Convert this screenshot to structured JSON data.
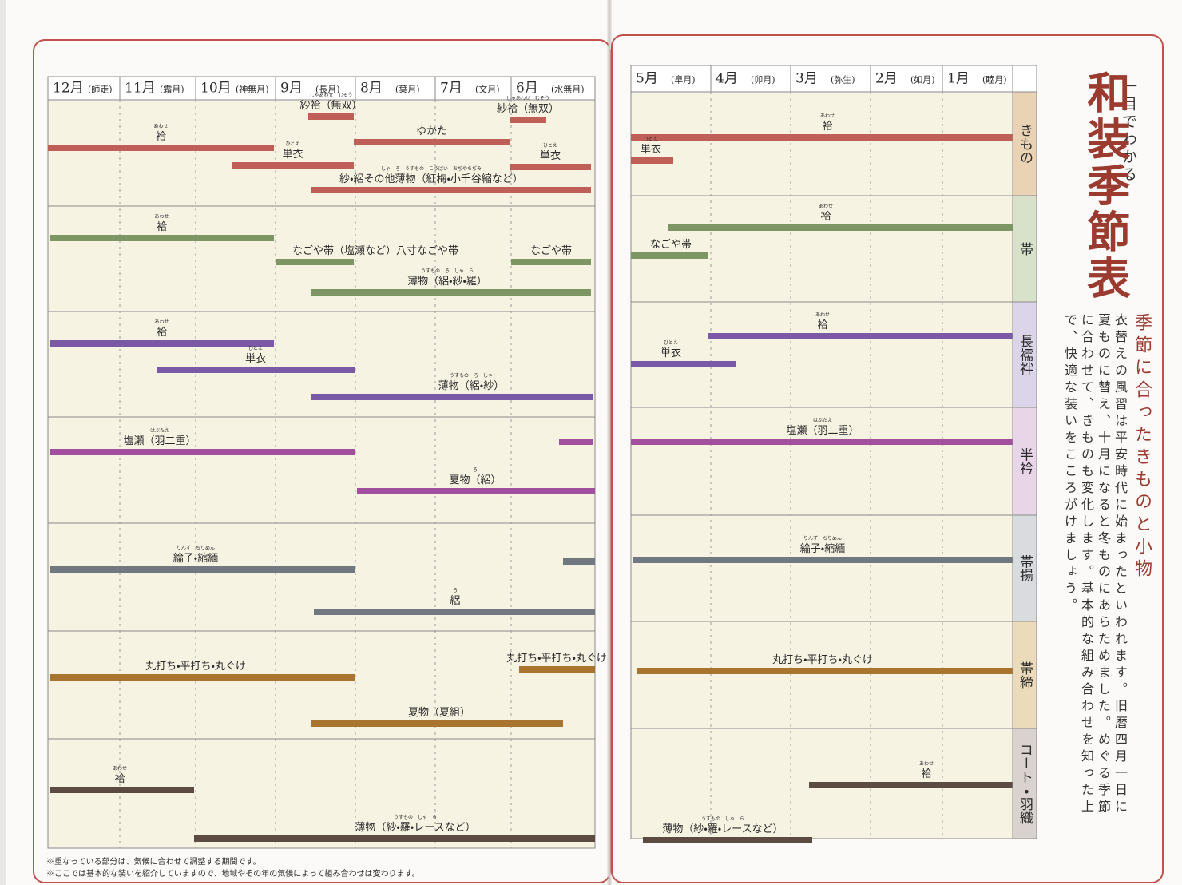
{
  "title": "和装季節表",
  "subtitle": "一目でわかる",
  "heading": "季節に合ったきものと小物",
  "body": "衣替えの風習は平安時代に始まったといわれます。旧暦四月一日に夏ものに替え、十月になると冬ものにあらためました。めぐる季節に合わせて、きものも変化します。基本的な組み合わせを知った上で、快適な装いをこころがけましょう。",
  "categories": [
    "きもの",
    "帯",
    "長襦袢",
    "半衿",
    "帯揚",
    "帯締",
    "コート・羽織"
  ],
  "bar_colors": [
    "#bf5f58",
    "#7d9663",
    "#7a5aa6",
    "#a24f9e",
    "#717880",
    "#a9742d",
    "#5b4b42"
  ],
  "tab_colors": [
    "#ead2b4",
    "#d8e2cb",
    "#dcd5ea",
    "#e8d5e7",
    "#d9dcdf",
    "#ecdbbb",
    "#d9d2ce"
  ],
  "left_months": [
    {
      "month": "12月",
      "name": "(師走)"
    },
    {
      "month": "11月",
      "name": "(霜月)"
    },
    {
      "month": "10月",
      "name": "(神無月)"
    },
    {
      "month": "9月",
      "name": "(長月)"
    },
    {
      "month": "8月",
      "name": "(葉月)"
    },
    {
      "month": "7月",
      "name": "(文月)"
    },
    {
      "month": "6月",
      "name": "(水無月)"
    }
  ],
  "right_months": [
    {
      "month": "5月",
      "name": "(皐月)"
    },
    {
      "month": "4月",
      "name": "(卯月)"
    },
    {
      "month": "3月",
      "name": "(弥生)"
    },
    {
      "month": "2月",
      "name": "(如月)"
    },
    {
      "month": "1月",
      "name": "(睦月)"
    }
  ],
  "left_rows": [
    [
      {
        "label": "紗袷（無双）",
        "ruby": "しゃあわせ　むそう"
      },
      {
        "label": "紗袷（無双）",
        "ruby": "しゃあわせ　むそう"
      },
      {
        "label": "袷",
        "ruby": "あわせ"
      },
      {
        "label": "ゆかた"
      },
      {
        "label": "単衣",
        "ruby": "ひとえ"
      },
      {
        "label": "単衣",
        "ruby": "ひとえ"
      },
      {
        "label": "紗・絽その他薄物（紅梅・小千谷縮など）",
        "ruby": "しゃ　ろ　うすもの　こうばい　おぢやちぢみ"
      }
    ],
    [
      {
        "label": "袷",
        "ruby": "あわせ"
      },
      {
        "label": "なごや帯（塩瀬など）八寸なごや帯"
      },
      {
        "label": "なごや帯"
      },
      {
        "label": "薄物（絽・紗・羅）",
        "ruby": "うすもの　ろ　しゃ　ら"
      }
    ],
    [
      {
        "label": "袷",
        "ruby": "あわせ"
      },
      {
        "label": "単衣",
        "ruby": "ひとえ"
      },
      {
        "label": "薄物（絽・紗）",
        "ruby": "うすもの　ろ　しゃ"
      }
    ],
    [
      {
        "label": "塩瀬（羽二重）",
        "ruby": "はぶたえ"
      },
      {
        "label": "夏物（絽）",
        "ruby": "ろ"
      }
    ],
    [
      {
        "label": "綸子・縮緬",
        "ruby": "りんず　ちりめん"
      },
      {
        "label": "絽",
        "ruby": "ろ"
      }
    ],
    [
      {
        "label": "丸打ち・平打ち・丸ぐけ"
      },
      {
        "label": "丸打ち・平打ち・丸ぐけ"
      },
      {
        "label": "夏物（夏組）"
      }
    ],
    [
      {
        "label": "袷",
        "ruby": "あわせ"
      },
      {
        "label": "薄物（紗・羅・レースなど）",
        "ruby": "うすもの　しゃ　ら"
      }
    ]
  ],
  "right_rows": [
    [
      {
        "label": "袷",
        "ruby": "あわせ"
      },
      {
        "label": "単衣",
        "ruby": "ひとえ"
      }
    ],
    [
      {
        "label": "袷",
        "ruby": "あわせ"
      },
      {
        "label": "なごや帯"
      }
    ],
    [
      {
        "label": "袷",
        "ruby": "あわせ"
      },
      {
        "label": "単衣",
        "ruby": "ひとえ"
      }
    ],
    [
      {
        "label": "塩瀬（羽二重）",
        "ruby": "はぶたえ"
      }
    ],
    [
      {
        "label": "綸子・縮緬",
        "ruby": "りんず　ちりめん"
      }
    ],
    [
      {
        "label": "丸打ち・平打ち・丸ぐけ"
      }
    ],
    [
      {
        "label": "袷",
        "ruby": "あわせ"
      },
      {
        "label": "薄物（紗・羅・レースなど）",
        "ruby": "うすもの　しゃ　ら"
      }
    ]
  ],
  "notes": [
    "※重なっている部分は、気候に合わせて調整する期間です。",
    "※ここでは基本的な装いを紹介していますので、地域やその年の気候によって組み合わせは変わります。"
  ]
}
